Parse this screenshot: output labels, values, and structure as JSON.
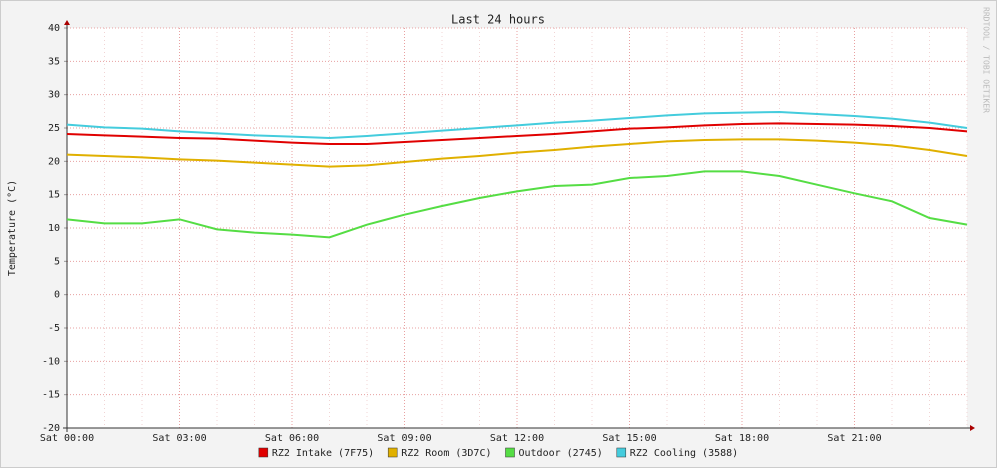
{
  "chart_data": {
    "type": "line",
    "title": "Last 24 hours",
    "y_label": "Temperature (°C)",
    "watermark": "RRDTOOL / TOBI OETIKER",
    "categories": [
      "Sat 00:00",
      null,
      null,
      "Sat 03:00",
      null,
      null,
      "Sat 06:00",
      null,
      null,
      "Sat 09:00",
      null,
      null,
      "Sat 12:00",
      null,
      null,
      "Sat 15:00",
      null,
      null,
      "Sat 18:00",
      null,
      null,
      "Sat 21:00",
      null,
      null,
      null
    ],
    "series": [
      {
        "name": "RZ2 Intake (7F75)",
        "color": "#e00000",
        "values": [
          24.1,
          23.9,
          23.7,
          23.5,
          23.4,
          23.1,
          22.8,
          22.6,
          22.6,
          22.9,
          23.2,
          23.5,
          23.8,
          24.1,
          24.5,
          24.9,
          25.1,
          25.4,
          25.6,
          25.7,
          25.6,
          25.5,
          25.3,
          25.0,
          24.5
        ]
      },
      {
        "name": "RZ2 Room (3D7C)",
        "color": "#e0b000",
        "values": [
          21.0,
          20.8,
          20.6,
          20.3,
          20.1,
          19.8,
          19.5,
          19.2,
          19.4,
          19.9,
          20.4,
          20.8,
          21.3,
          21.7,
          22.2,
          22.6,
          23.0,
          23.2,
          23.3,
          23.3,
          23.1,
          22.8,
          22.4,
          21.7,
          20.8
        ]
      },
      {
        "name": "Outdoor (2745)",
        "color": "#55dd44",
        "values": [
          11.3,
          10.7,
          10.7,
          11.3,
          9.8,
          9.3,
          9.0,
          8.6,
          10.5,
          12.0,
          13.3,
          14.5,
          15.5,
          16.3,
          16.5,
          17.5,
          17.8,
          18.5,
          18.5,
          17.8,
          16.5,
          15.2,
          14.0,
          11.5,
          10.5
        ]
      },
      {
        "name": "RZ2 Cooling (3588)",
        "color": "#44ccdd",
        "values": [
          25.5,
          25.1,
          24.9,
          24.5,
          24.2,
          23.9,
          23.7,
          23.5,
          23.8,
          24.2,
          24.6,
          25.0,
          25.4,
          25.8,
          26.1,
          26.5,
          26.9,
          27.2,
          27.3,
          27.4,
          27.1,
          26.8,
          26.4,
          25.8,
          25.0
        ]
      }
    ],
    "ylim": [
      -20,
      40
    ],
    "yticks": [
      -20,
      -15,
      -10,
      -5,
      0,
      5,
      10,
      15,
      20,
      25,
      30,
      35,
      40
    ],
    "grid": true,
    "legend": "bottom"
  }
}
